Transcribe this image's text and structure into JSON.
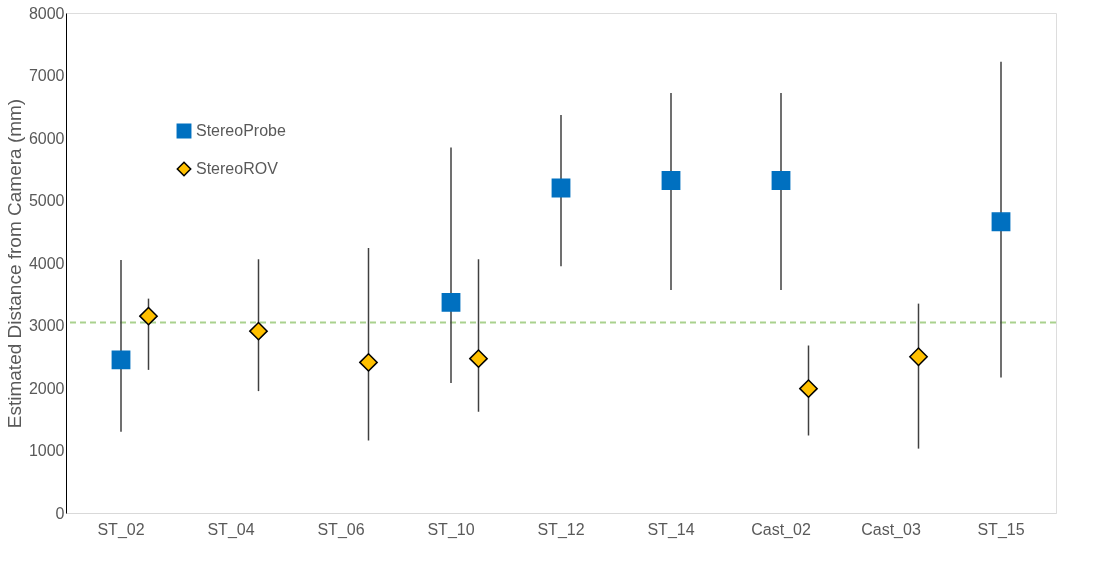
{
  "chart_data": {
    "type": "scatter",
    "ylabel": "Estimated Distance from Camera (mm)",
    "categories": [
      "ST_02",
      "ST_04",
      "ST_06",
      "ST_10",
      "ST_12",
      "ST_14",
      "Cast_02",
      "Cast_03",
      "ST_15"
    ],
    "series": [
      {
        "name": "StereoProbe",
        "color": "#0070c0",
        "marker": "square",
        "values": [
          2450,
          null,
          null,
          3370,
          5200,
          5320,
          5320,
          null,
          4660
        ],
        "errors": [
          [
            1300,
            4050
          ],
          null,
          null,
          [
            2080,
            5850
          ],
          [
            3950,
            6370
          ],
          [
            3570,
            6720
          ],
          [
            3570,
            6720
          ],
          null,
          [
            2170,
            7220
          ]
        ]
      },
      {
        "name": "StereoROV",
        "color": "#ffc000",
        "marker": "diamond",
        "values": [
          3150,
          2910,
          2410,
          2470,
          null,
          null,
          1990,
          2500,
          null
        ],
        "errors": [
          [
            2290,
            3430
          ],
          [
            1950,
            4060
          ],
          [
            1160,
            4240
          ],
          [
            1620,
            4060
          ],
          null,
          null,
          [
            1240,
            2680
          ],
          [
            1030,
            3350
          ],
          null
        ]
      }
    ],
    "ylim": [
      0,
      8000
    ],
    "yticks": [
      0,
      1000,
      2000,
      3000,
      4000,
      5000,
      6000,
      7000,
      8000
    ],
    "ref_lines": [
      {
        "axis": "y",
        "value": 3050,
        "color": "#a9d18e",
        "line_style": "dashed"
      }
    ],
    "grid": false,
    "legend": "top left"
  }
}
